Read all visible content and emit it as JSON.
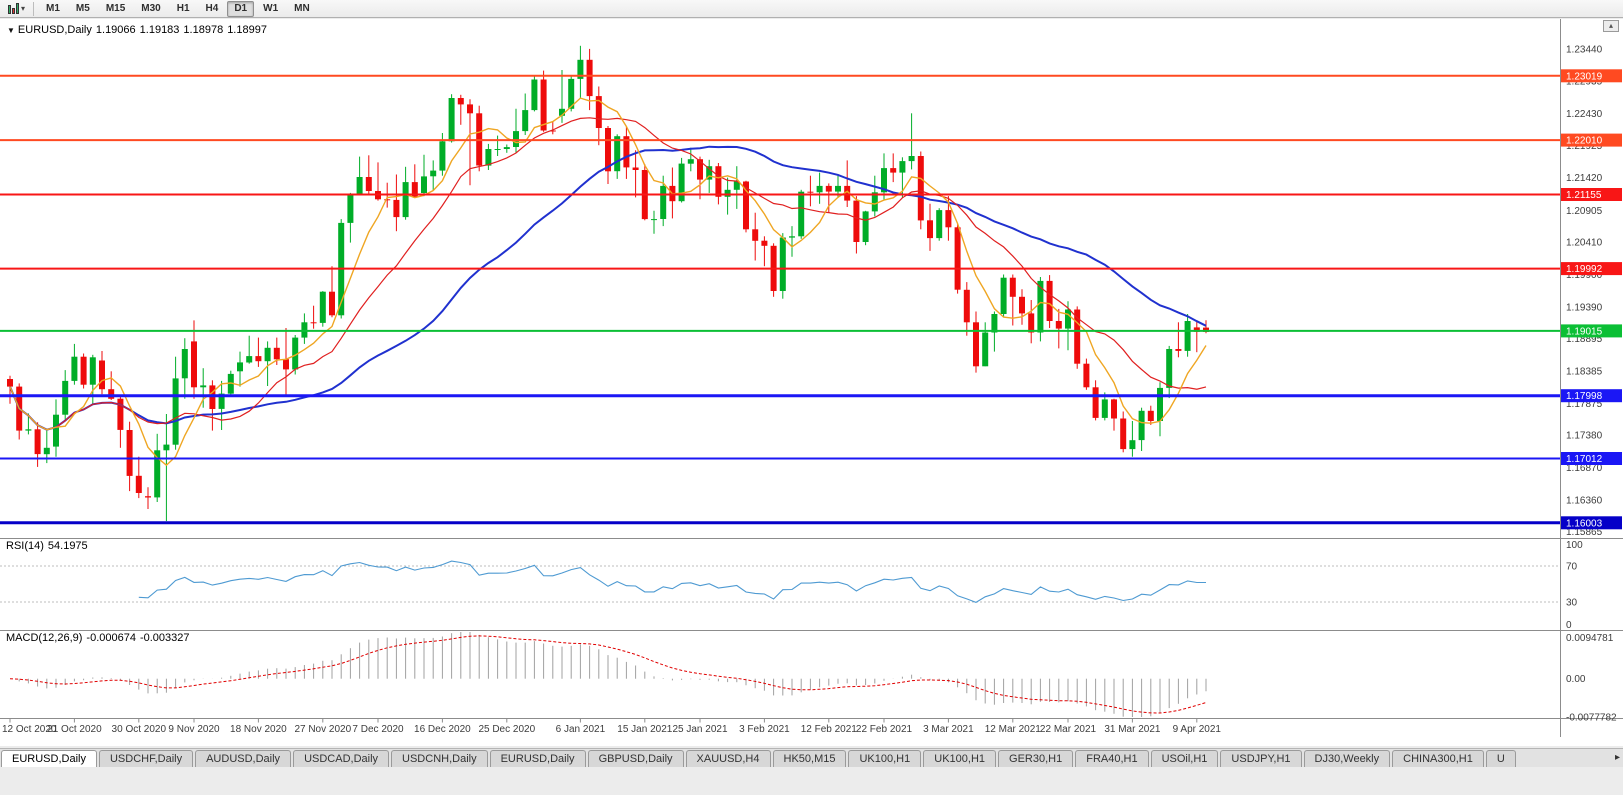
{
  "toolbar": {
    "timeframes": [
      "M1",
      "M5",
      "M15",
      "M30",
      "H1",
      "H4",
      "D1",
      "W1",
      "MN"
    ],
    "selected_timeframe": "D1"
  },
  "chart": {
    "title": {
      "symbol": "EURUSD,Daily",
      "open": "1.19066",
      "high": "1.19183",
      "low": "1.18978",
      "close": "1.18997"
    },
    "price_axis": {
      "labels": [
        "1.23440",
        "1.22935",
        "1.22430",
        "1.21925",
        "1.21420",
        "1.20905",
        "1.20410",
        "1.19900",
        "1.19390",
        "1.18895",
        "1.18385",
        "1.17875",
        "1.17380",
        "1.16870",
        "1.16360",
        "1.15865"
      ]
    }
  },
  "hlines": [
    {
      "price": 1.23019,
      "label": "1.23019",
      "color": "#ff4a21",
      "width": 2
    },
    {
      "price": 1.2201,
      "label": "1.22010",
      "color": "#ff4a21",
      "width": 2
    },
    {
      "price": 1.21155,
      "label": "1.21155",
      "color": "#f81616",
      "width": 2
    },
    {
      "price": 1.19992,
      "label": "1.19992",
      "color": "#f81616",
      "width": 2
    },
    {
      "price": 1.19015,
      "label": "1.19015",
      "color": "#0bbf35",
      "width": 2
    },
    {
      "price": 1.17998,
      "label": "1.17998",
      "color": "#1b17f5",
      "width": 3
    },
    {
      "price": 1.17012,
      "label": "1.17012",
      "color": "#1b17f5",
      "width": 2
    },
    {
      "price": 1.16003,
      "label": "1.16003",
      "color": "#0500c8",
      "width": 3
    }
  ],
  "rsi": {
    "label": "RSI(14)",
    "value": "54.1975",
    "period": 14,
    "line_color": "#4e9ad2",
    "levels": [
      70,
      30
    ],
    "axis": [
      {
        "value": 100,
        "label": "100"
      },
      {
        "value": 70,
        "label": "70"
      },
      {
        "value": 30,
        "label": "30"
      },
      {
        "value": 0,
        "label": "0"
      }
    ]
  },
  "macd": {
    "label": "MACD(12,26,9)",
    "main": "-0.000674",
    "signal": "-0.003327",
    "fast": 12,
    "slow": 26,
    "signal_period": 9,
    "hist_color": "#a0a0a0",
    "signal_color": "#e00000",
    "axis": [
      {
        "value": 0.0094781,
        "label": "0.0094781"
      },
      {
        "value": 0,
        "label": "0.00"
      },
      {
        "value": -0.0077782,
        "label": "-0.0077782"
      }
    ]
  },
  "colors": {
    "bull": "#00ad28",
    "bear": "#ee0b0b",
    "axis_text": "#3c3c3c",
    "separator": "#8c8c8c",
    "background": "#ffffff"
  },
  "chart_data": {
    "type": "candlestick",
    "symbol": "EURUSD",
    "timeframe": "Daily",
    "ylim": [
      1.1578,
      1.2391
    ],
    "candles": [
      [
        1.1826,
        1.1831,
        1.1787,
        1.1814
      ],
      [
        1.1814,
        1.1819,
        1.1731,
        1.1745
      ],
      [
        1.1745,
        1.1772,
        1.1739,
        1.1747
      ],
      [
        1.1747,
        1.1758,
        1.1688,
        1.1708
      ],
      [
        1.1708,
        1.1747,
        1.1694,
        1.1718
      ],
      [
        1.172,
        1.1794,
        1.1704,
        1.177
      ],
      [
        1.177,
        1.184,
        1.1762,
        1.1823
      ],
      [
        1.1823,
        1.1881,
        1.1817,
        1.1861
      ],
      [
        1.1861,
        1.1866,
        1.1811,
        1.1817
      ],
      [
        1.1817,
        1.1864,
        1.1787,
        1.186
      ],
      [
        1.1855,
        1.187,
        1.1802,
        1.181
      ],
      [
        1.181,
        1.1838,
        1.1793,
        1.1795
      ],
      [
        1.1795,
        1.18,
        1.1718,
        1.1746
      ],
      [
        1.1746,
        1.1759,
        1.165,
        1.1674
      ],
      [
        1.1674,
        1.1704,
        1.1639,
        1.1647
      ],
      [
        1.1642,
        1.1656,
        1.1622,
        1.164
      ],
      [
        1.164,
        1.174,
        1.1633,
        1.1714
      ],
      [
        1.1714,
        1.1771,
        1.1603,
        1.1723
      ],
      [
        1.1723,
        1.1861,
        1.1715,
        1.1827
      ],
      [
        1.1827,
        1.189,
        1.1795,
        1.1873
      ],
      [
        1.1885,
        1.1918,
        1.1795,
        1.1813
      ],
      [
        1.1813,
        1.1843,
        1.1781,
        1.1816
      ],
      [
        1.1816,
        1.1824,
        1.1745,
        1.1779
      ],
      [
        1.1779,
        1.1823,
        1.1746,
        1.1803
      ],
      [
        1.1803,
        1.1839,
        1.1799,
        1.1834
      ],
      [
        1.1838,
        1.1869,
        1.1814,
        1.1852
      ],
      [
        1.1852,
        1.1894,
        1.185,
        1.1862
      ],
      [
        1.1862,
        1.1891,
        1.1845,
        1.1854
      ],
      [
        1.1854,
        1.1885,
        1.1815,
        1.1875
      ],
      [
        1.1875,
        1.1891,
        1.1848,
        1.1857
      ],
      [
        1.1857,
        1.1906,
        1.18,
        1.1841
      ],
      [
        1.1841,
        1.1895,
        1.1833,
        1.1891
      ],
      [
        1.1891,
        1.1929,
        1.1881,
        1.1915
      ],
      [
        1.1915,
        1.1941,
        1.1905,
        1.1914
      ],
      [
        1.1914,
        1.1964,
        1.1908,
        1.1963
      ],
      [
        1.1963,
        1.2003,
        1.1923,
        1.1926
      ],
      [
        1.1926,
        1.2077,
        1.1921,
        1.2071
      ],
      [
        1.2071,
        1.2118,
        1.204,
        1.2115
      ],
      [
        1.2115,
        1.2175,
        1.2114,
        1.2143
      ],
      [
        1.2143,
        1.2177,
        1.2116,
        1.2121
      ],
      [
        1.2121,
        1.2166,
        1.2106,
        1.2108
      ],
      [
        1.2108,
        1.2134,
        1.2095,
        1.2107
      ],
      [
        1.2107,
        1.2147,
        1.2058,
        1.208
      ],
      [
        1.208,
        1.2159,
        1.2076,
        1.2135
      ],
      [
        1.2135,
        1.2163,
        1.211,
        1.2112
      ],
      [
        1.2118,
        1.2178,
        1.2113,
        1.2144
      ],
      [
        1.2144,
        1.2169,
        1.2122,
        1.2153
      ],
      [
        1.2153,
        1.2212,
        1.2145,
        1.2199
      ],
      [
        1.2199,
        1.2273,
        1.2197,
        1.2267
      ],
      [
        1.2267,
        1.2272,
        1.2225,
        1.2257
      ],
      [
        1.2257,
        1.2265,
        1.213,
        1.2243
      ],
      [
        1.2243,
        1.2255,
        1.2152,
        1.2161
      ],
      [
        1.2161,
        1.2195,
        1.2154,
        1.2187
      ],
      [
        1.2187,
        1.2208,
        1.2176,
        1.2187
      ],
      [
        1.2187,
        1.2194,
        1.2181,
        1.219
      ],
      [
        1.219,
        1.225,
        1.2181,
        1.2215
      ],
      [
        1.2215,
        1.2274,
        1.2209,
        1.2248
      ],
      [
        1.2248,
        1.2303,
        1.2246,
        1.2296
      ],
      [
        1.2296,
        1.231,
        1.2214,
        1.2216
      ],
      [
        1.2216,
        1.223,
        1.221,
        1.2215
      ],
      [
        1.2239,
        1.2311,
        1.2228,
        1.225
      ],
      [
        1.225,
        1.2303,
        1.2246,
        1.2297
      ],
      [
        1.2297,
        1.2349,
        1.2266,
        1.2327
      ],
      [
        1.2327,
        1.2344,
        1.2248,
        1.227
      ],
      [
        1.227,
        1.2285,
        1.2193,
        1.222
      ],
      [
        1.222,
        1.2223,
        1.2132,
        1.2152
      ],
      [
        1.2152,
        1.221,
        1.214,
        1.2207
      ],
      [
        1.2207,
        1.2223,
        1.214,
        1.2158
      ],
      [
        1.2158,
        1.2185,
        1.2111,
        1.2154
      ],
      [
        1.2154,
        1.2163,
        1.2075,
        1.2077
      ],
      [
        1.2077,
        1.209,
        1.2054,
        1.2077
      ],
      [
        1.2077,
        1.2145,
        1.2066,
        1.2129
      ],
      [
        1.2129,
        1.2158,
        1.2078,
        1.2105
      ],
      [
        1.2105,
        1.2173,
        1.2103,
        1.2164
      ],
      [
        1.2164,
        1.2189,
        1.2152,
        1.2171
      ],
      [
        1.2171,
        1.2175,
        1.2108,
        1.2139
      ],
      [
        1.2139,
        1.217,
        1.2118,
        1.216
      ],
      [
        1.216,
        1.2165,
        1.21,
        1.2112
      ],
      [
        1.2112,
        1.2142,
        1.2084,
        1.2123
      ],
      [
        1.2123,
        1.216,
        1.2093,
        1.2136
      ],
      [
        1.2136,
        1.2137,
        1.2056,
        1.2061
      ],
      [
        1.2061,
        1.2087,
        1.2012,
        1.2043
      ],
      [
        1.2043,
        1.205,
        1.2003,
        1.2035
      ],
      [
        1.2035,
        1.2039,
        1.1955,
        1.1964
      ],
      [
        1.1964,
        1.2055,
        1.1952,
        1.2048
      ],
      [
        1.2048,
        1.2066,
        1.2018,
        1.205
      ],
      [
        1.205,
        1.2123,
        1.2046,
        1.212
      ],
      [
        1.212,
        1.2145,
        1.2097,
        1.2119
      ],
      [
        1.2119,
        1.215,
        1.2101,
        1.2129
      ],
      [
        1.2129,
        1.2133,
        1.2087,
        1.212
      ],
      [
        1.212,
        1.2147,
        1.211,
        1.2129
      ],
      [
        1.2129,
        1.2169,
        1.2096,
        1.2106
      ],
      [
        1.2106,
        1.2113,
        1.2023,
        1.2041
      ],
      [
        1.2041,
        1.209,
        1.2036,
        1.2089
      ],
      [
        1.2089,
        1.2145,
        1.2081,
        1.2119
      ],
      [
        1.2119,
        1.218,
        1.2107,
        1.2157
      ],
      [
        1.2157,
        1.218,
        1.2135,
        1.215
      ],
      [
        1.215,
        1.2174,
        1.211,
        1.2168
      ],
      [
        1.2168,
        1.2243,
        1.2155,
        1.2176
      ],
      [
        1.2176,
        1.2183,
        1.2061,
        1.2075
      ],
      [
        1.2075,
        1.2101,
        1.2027,
        1.2047
      ],
      [
        1.2047,
        1.2094,
        1.2043,
        1.2091
      ],
      [
        1.2091,
        1.2113,
        1.2043,
        1.2064
      ],
      [
        1.2064,
        1.2069,
        1.196,
        1.1966
      ],
      [
        1.1966,
        1.1978,
        1.1894,
        1.1915
      ],
      [
        1.1915,
        1.1932,
        1.1836,
        1.1846
      ],
      [
        1.1846,
        1.1915,
        1.1846,
        1.1899
      ],
      [
        1.1899,
        1.1932,
        1.1869,
        1.1928
      ],
      [
        1.1928,
        1.199,
        1.1924,
        1.1985
      ],
      [
        1.1985,
        1.199,
        1.191,
        1.1955
      ],
      [
        1.1955,
        1.1967,
        1.1911,
        1.1929
      ],
      [
        1.1929,
        1.195,
        1.1882,
        1.1899
      ],
      [
        1.1899,
        1.1986,
        1.1885,
        1.198
      ],
      [
        1.198,
        1.1989,
        1.1906,
        1.1917
      ],
      [
        1.1917,
        1.1936,
        1.1874,
        1.1905
      ],
      [
        1.1905,
        1.1948,
        1.1871,
        1.1935
      ],
      [
        1.1935,
        1.194,
        1.1842,
        1.185
      ],
      [
        1.185,
        1.1858,
        1.1809,
        1.1813
      ],
      [
        1.1813,
        1.1824,
        1.1761,
        1.1765
      ],
      [
        1.1765,
        1.1805,
        1.1761,
        1.1794
      ],
      [
        1.1794,
        1.1795,
        1.1745,
        1.1764
      ],
      [
        1.1764,
        1.1775,
        1.1711,
        1.1716
      ],
      [
        1.1716,
        1.176,
        1.1704,
        1.173
      ],
      [
        1.173,
        1.1781,
        1.1713,
        1.1776
      ],
      [
        1.1776,
        1.1784,
        1.1754,
        1.176
      ],
      [
        1.176,
        1.1821,
        1.1736,
        1.1812
      ],
      [
        1.1812,
        1.1878,
        1.1796,
        1.1873
      ],
      [
        1.1873,
        1.1915,
        1.186,
        1.187
      ],
      [
        1.187,
        1.1928,
        1.1861,
        1.1917
      ],
      [
        1.1907,
        1.1918,
        1.1868,
        1.19
      ],
      [
        1.19066,
        1.19183,
        1.18978,
        1.18997
      ]
    ],
    "x_ticks": [
      {
        "i": 0,
        "label": "12 Oct 2020"
      },
      {
        "i": 7,
        "label": "21 Oct 2020"
      },
      {
        "i": 14,
        "label": "30 Oct 2020"
      },
      {
        "i": 20,
        "label": "9 Nov 2020"
      },
      {
        "i": 27,
        "label": "18 Nov 2020"
      },
      {
        "i": 34,
        "label": "27 Nov 2020"
      },
      {
        "i": 40,
        "label": "7 Dec 2020"
      },
      {
        "i": 47,
        "label": "16 Dec 2020"
      },
      {
        "i": 54,
        "label": "25 Dec 2020"
      },
      {
        "i": 62,
        "label": "6 Jan 2021"
      },
      {
        "i": 69,
        "label": "15 Jan 2021"
      },
      {
        "i": 75,
        "label": "25 Jan 2021"
      },
      {
        "i": 82,
        "label": "3 Feb 2021"
      },
      {
        "i": 89,
        "label": "12 Feb 2021"
      },
      {
        "i": 95,
        "label": "22 Feb 2021"
      },
      {
        "i": 102,
        "label": "3 Mar 2021"
      },
      {
        "i": 109,
        "label": "12 Mar 2021"
      },
      {
        "i": 115,
        "label": "22 Mar 2021"
      },
      {
        "i": 122,
        "label": "31 Mar 2021"
      },
      {
        "i": 129,
        "label": "9 Apr 2021"
      }
    ],
    "moving_averages": [
      {
        "period": 34,
        "color": "#2031cf",
        "width": 2
      },
      {
        "period": 14,
        "color": "#e02020",
        "width": 1.2
      },
      {
        "period": 6,
        "color": "#efa623",
        "width": 1.4
      }
    ]
  },
  "tabs": {
    "items": [
      {
        "label": "EURUSD,Daily",
        "active": true
      },
      {
        "label": "USDCHF,Daily"
      },
      {
        "label": "AUDUSD,Daily"
      },
      {
        "label": "USDCAD,Daily"
      },
      {
        "label": "USDCNH,Daily"
      },
      {
        "label": "EURUSD,Daily"
      },
      {
        "label": "GBPUSD,Daily"
      },
      {
        "label": "XAUUSD,H4"
      },
      {
        "label": "HK50,M15"
      },
      {
        "label": "UK100,H1"
      },
      {
        "label": "UK100,H1"
      },
      {
        "label": "GER30,H1"
      },
      {
        "label": "FRA40,H1"
      },
      {
        "label": "USOil,H1"
      },
      {
        "label": "USDJPY,H1"
      },
      {
        "label": "DJ30,Weekly"
      },
      {
        "label": "CHINA300,H1"
      },
      {
        "label": "U"
      }
    ],
    "scroll_right_icon": "▸"
  }
}
